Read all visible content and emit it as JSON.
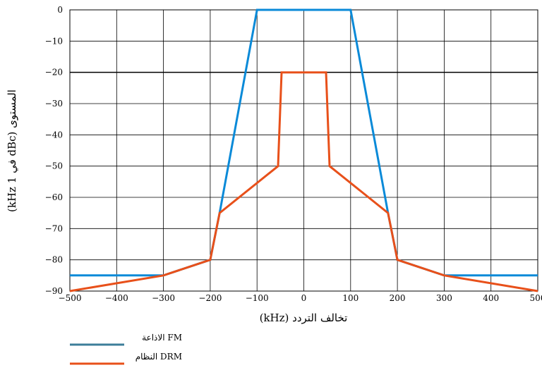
{
  "chart_data": {
    "type": "line",
    "title": "",
    "xlabel": "تخالف التردد (kHz)",
    "ylabel": "المستوى (dBc في 1 kHz)",
    "xlim": [
      -500,
      500
    ],
    "ylim": [
      -90,
      0
    ],
    "x_ticks": [
      -500,
      -400,
      -300,
      -200,
      -100,
      0,
      100,
      200,
      300,
      400,
      500
    ],
    "x_tick_labels": [
      "−500",
      "−400",
      "−300",
      "−200",
      "−100",
      "0",
      "100",
      "200",
      "300",
      "400",
      "500"
    ],
    "y_ticks": [
      0,
      -10,
      -20,
      -30,
      -40,
      -50,
      -60,
      -70,
      -80,
      -90
    ],
    "y_tick_labels": [
      "0",
      "−10",
      "−20",
      "−30",
      "−40",
      "−50",
      "−60",
      "−70",
      "−80",
      "−90"
    ],
    "highlight_y": -20,
    "grid": true,
    "legend_position": "bottom-left",
    "series": [
      {
        "name": "الاذاعة FM",
        "color": "#0a8ad8",
        "legend_color": "#3d7e9a",
        "x": [
          -500,
          -300,
          -200,
          -180,
          -100,
          100,
          180,
          200,
          300,
          500
        ],
        "y": [
          -85,
          -85,
          -80,
          -65,
          0,
          0,
          -65,
          -80,
          -85,
          -85
        ]
      },
      {
        "name": "النظام DRM",
        "color": "#e8501a",
        "legend_color": "#e8501a",
        "x": [
          -500,
          -300,
          -200,
          -180,
          -55,
          -47.5,
          -47.5,
          47.5,
          47.5,
          55,
          180,
          200,
          300,
          500
        ],
        "y": [
          -90,
          -85,
          -80,
          -65,
          -50,
          -20,
          -20,
          -20,
          -20,
          -50,
          -65,
          -80,
          -85,
          -90
        ]
      }
    ]
  }
}
